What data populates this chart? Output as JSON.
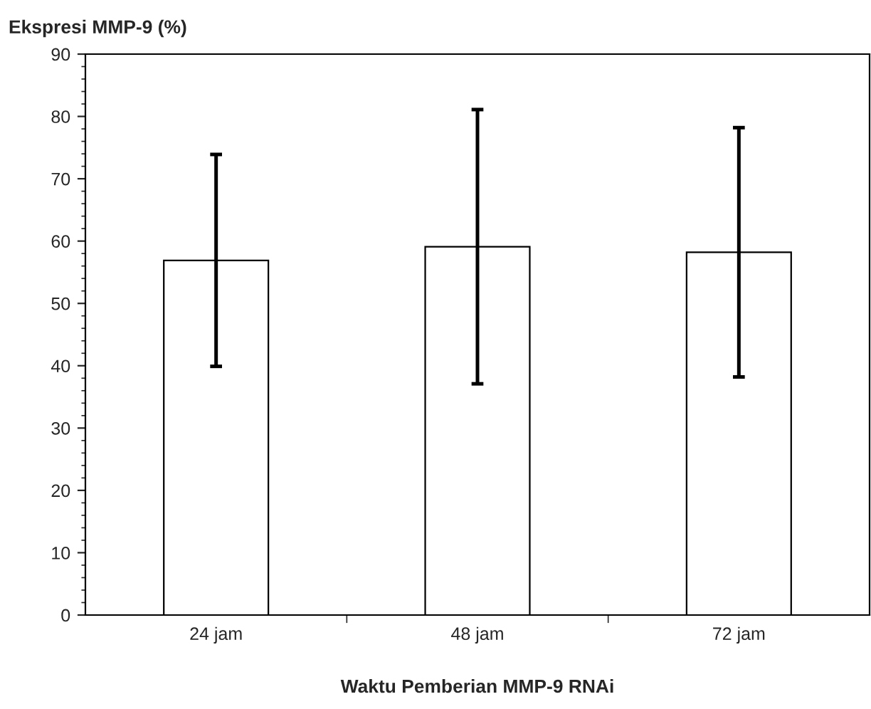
{
  "chart_data": {
    "type": "bar",
    "ylabel": "Ekspresi MMP-9 (%)",
    "xlabel": "Waktu Pemberian MMP-9 RNAi",
    "categories": [
      "24 jam",
      "48 jam",
      "72 jam"
    ],
    "values": [
      56.9,
      59.1,
      58.2
    ],
    "errors": [
      17,
      22,
      20
    ],
    "color": "#ffffff",
    "ylim": [
      0,
      90
    ],
    "yticks": [
      0,
      10,
      20,
      30,
      40,
      50,
      60,
      70,
      80,
      90
    ],
    "grid": false,
    "legend": false
  }
}
